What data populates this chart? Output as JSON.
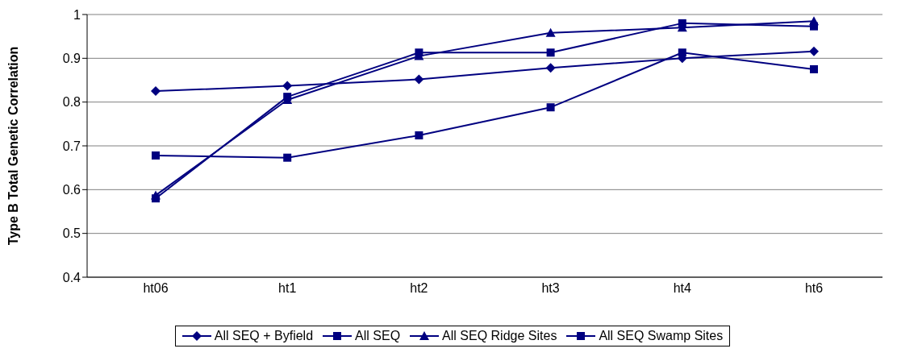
{
  "chart_data": {
    "type": "line",
    "ylabel": "Type B Total Genetic Correlation",
    "categories": [
      "ht06",
      "ht1",
      "ht2",
      "ht3",
      "ht4",
      "ht6"
    ],
    "series": [
      {
        "name": "All SEQ + Byfield",
        "color": "#000080",
        "marker": "diamond",
        "values": [
          0.825,
          0.837,
          0.852,
          0.878,
          0.9,
          0.916
        ]
      },
      {
        "name": "All SEQ",
        "color": "#000080",
        "marker": "square",
        "values": [
          0.58,
          0.812,
          0.913,
          0.913,
          0.98,
          0.973
        ]
      },
      {
        "name": "All SEQ Ridge Sites",
        "color": "#000080",
        "marker": "triangle",
        "values": [
          0.587,
          0.805,
          0.905,
          0.958,
          0.97,
          0.985
        ]
      },
      {
        "name": "All SEQ Swamp Sites",
        "color": "#000080",
        "marker": "square",
        "values": [
          0.678,
          0.673,
          0.724,
          0.788,
          0.913,
          0.875
        ]
      }
    ],
    "ylim": [
      0.4,
      1
    ],
    "yticks": [
      0.4,
      0.5,
      0.6,
      0.7,
      0.8,
      0.9,
      1
    ],
    "grid": "y",
    "legend": "bottom"
  }
}
